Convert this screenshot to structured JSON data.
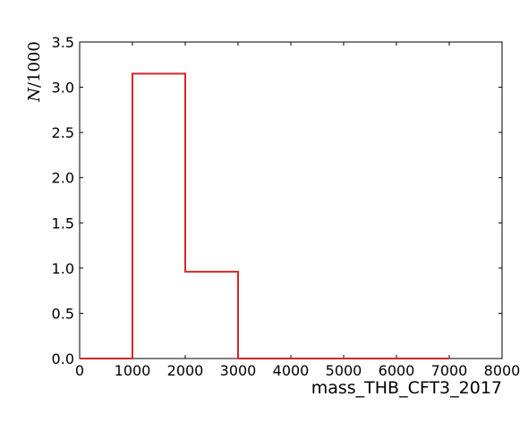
{
  "chart_data": {
    "type": "histogram-step",
    "title": "",
    "xlabel": "mass_THB_CFT3_2017",
    "ylabel": "N/1000",
    "ylabel_parts": {
      "main": "N",
      "rest": "/1000"
    },
    "xlim": [
      0,
      8000
    ],
    "ylim": [
      0,
      3.5
    ],
    "x_ticks": [
      0,
      1000,
      2000,
      3000,
      4000,
      5000,
      6000,
      7000,
      8000
    ],
    "x_tick_labels": [
      "0",
      "1000",
      "2000",
      "3000",
      "4000",
      "5000",
      "6000",
      "7000",
      "8000"
    ],
    "y_ticks": [
      0,
      0.5,
      1.0,
      1.5,
      2.0,
      2.5,
      3.0,
      3.5
    ],
    "y_tick_labels": [
      "0.0",
      "0.5",
      "1.0",
      "1.5",
      "2.0",
      "2.5",
      "3.0",
      "3.5"
    ],
    "grid": false,
    "legend": "none",
    "series": [
      {
        "color": "#d62728",
        "bin_edges": [
          0,
          1000,
          2000,
          3000,
          4000,
          5000,
          6000,
          7000
        ],
        "values": [
          0.0,
          3.15,
          0.96,
          0.0,
          0.0,
          0.0,
          0.0
        ]
      }
    ]
  }
}
